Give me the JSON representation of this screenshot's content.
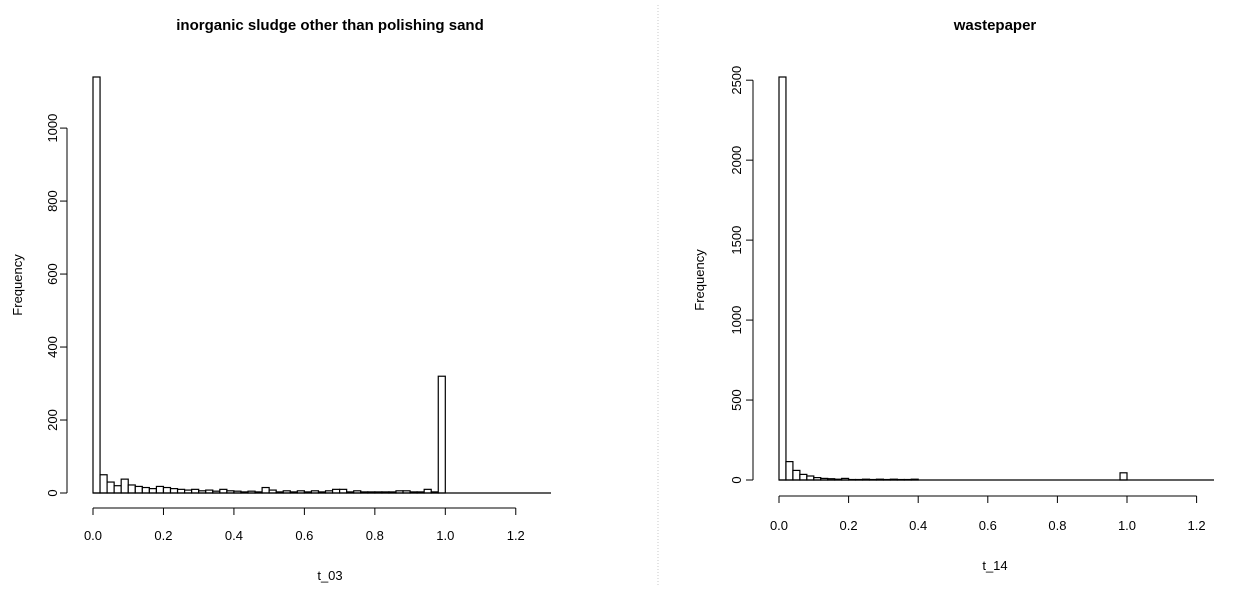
{
  "chart_data": [
    {
      "type": "bar",
      "title": "inorganic sludge other than polishing sand",
      "xlabel": "t_03",
      "ylabel": "Frequency",
      "xlim": [
        0,
        1.3
      ],
      "ylim": [
        0,
        1140
      ],
      "xticks": [
        "0.0",
        "0.2",
        "0.4",
        "0.6",
        "0.8",
        "1.0",
        "1.2"
      ],
      "yticks": [
        "0",
        "200",
        "400",
        "600",
        "800",
        "1000"
      ],
      "bin_width": 0.02,
      "bin_start": 0,
      "values": [
        1140,
        50,
        30,
        20,
        38,
        22,
        18,
        15,
        12,
        18,
        15,
        12,
        10,
        8,
        10,
        6,
        8,
        5,
        10,
        6,
        5,
        3,
        5,
        3,
        15,
        8,
        3,
        6,
        3,
        6,
        3,
        6,
        3,
        6,
        10,
        10,
        3,
        6,
        3,
        3,
        3,
        3,
        3,
        6,
        6,
        3,
        3,
        10,
        3,
        320
      ]
    },
    {
      "type": "bar",
      "title": "wastepaper",
      "xlabel": "t_14",
      "ylabel": "Frequency",
      "xlim": [
        0,
        1.25
      ],
      "ylim": [
        0,
        2520
      ],
      "xticks": [
        "0.0",
        "0.2",
        "0.4",
        "0.6",
        "0.8",
        "1.0",
        "1.2"
      ],
      "yticks": [
        "0",
        "500",
        "1000",
        "1500",
        "2000",
        "2500"
      ],
      "bin_width": 0.02,
      "bin_start": 0,
      "values": [
        2520,
        115,
        60,
        35,
        25,
        15,
        10,
        8,
        5,
        10,
        3,
        3,
        5,
        3,
        5,
        3,
        5,
        3,
        3,
        5,
        0,
        0,
        0,
        0,
        0,
        0,
        0,
        0,
        0,
        0,
        0,
        0,
        0,
        0,
        0,
        0,
        0,
        0,
        0,
        0,
        0,
        0,
        0,
        0,
        0,
        0,
        0,
        0,
        0,
        45
      ]
    }
  ]
}
